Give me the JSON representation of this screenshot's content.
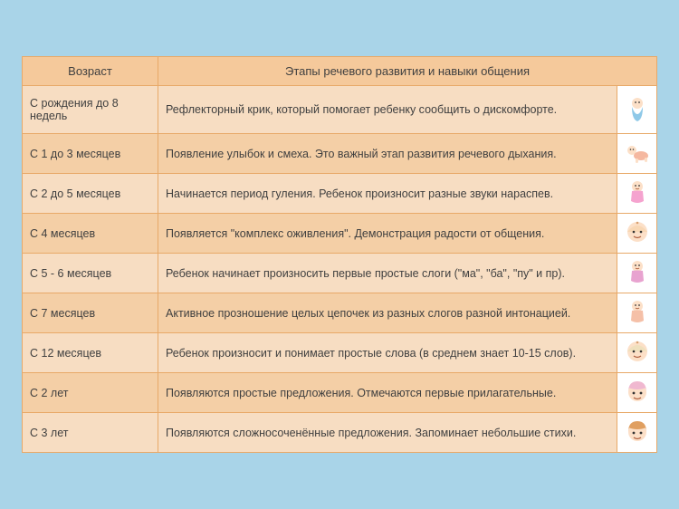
{
  "headers": {
    "age": "Возраст",
    "desc": "Этапы речевого развития и навыки общения"
  },
  "rows": [
    {
      "age": "С рождения до 8 недель",
      "desc": "Рефлекторный крик, который помогает ребенку сообщить о дискомфорте.",
      "icon": "baby-swaddle",
      "iconTint": "#8fc9e8"
    },
    {
      "age": "С 1 до 3 месяцев",
      "desc": "Появление улыбок и смеха. Это важный этап развития речевого дыхания.",
      "icon": "baby-crawl",
      "iconTint": "#f5b8a0"
    },
    {
      "age": "С 2 до 5 месяцев",
      "desc": "Начинается период гуления. Ребенок произносит разные звуки нараспев.",
      "icon": "baby-sit",
      "iconTint": "#f5a3cf"
    },
    {
      "age": "С 4 месяцев",
      "desc": "Появляется \"комплекс оживления\".  Демонстрация  радости от общения.",
      "icon": "baby-face",
      "iconTint": "#f0c58f"
    },
    {
      "age": "С 5 - 6 месяцев",
      "desc": "Ребенок начинает произносить первые простые слоги (\"ма\", \"ба\", \"пу\" и пр).",
      "icon": "baby-sit",
      "iconTint": "#e8a3d0"
    },
    {
      "age": "С 7 месяцев",
      "desc": "Активное прозношение целых цепочек из разных слогов разной интонацией.",
      "icon": "baby-sit",
      "iconTint": "#f5c0a8"
    },
    {
      "age": "С 12 месяцев",
      "desc": "Ребенок произносит и понимает простые слова (в среднем знает 10-15 слов).",
      "icon": "baby-face",
      "iconTint": "#d8e0a8"
    },
    {
      "age": "С 2 лет",
      "desc": "Появляются простые предложения. Отмечаются первые прилагательные.",
      "icon": "child-face",
      "iconTint": "#f0b8d0"
    },
    {
      "age": "С 3 лет",
      "desc": "Появляются сложносоченённые предложения. Запоминает небольшие стихи.",
      "icon": "child-face",
      "iconTint": "#e09f60"
    }
  ],
  "colors": {
    "pageBg": "#a9d4e8",
    "rowOdd": "#f7ddc2",
    "rowEven": "#f4cfa6",
    "headerBg": "#f5c99b",
    "border": "#e8a968",
    "iconCellBg": "#ffffff"
  }
}
